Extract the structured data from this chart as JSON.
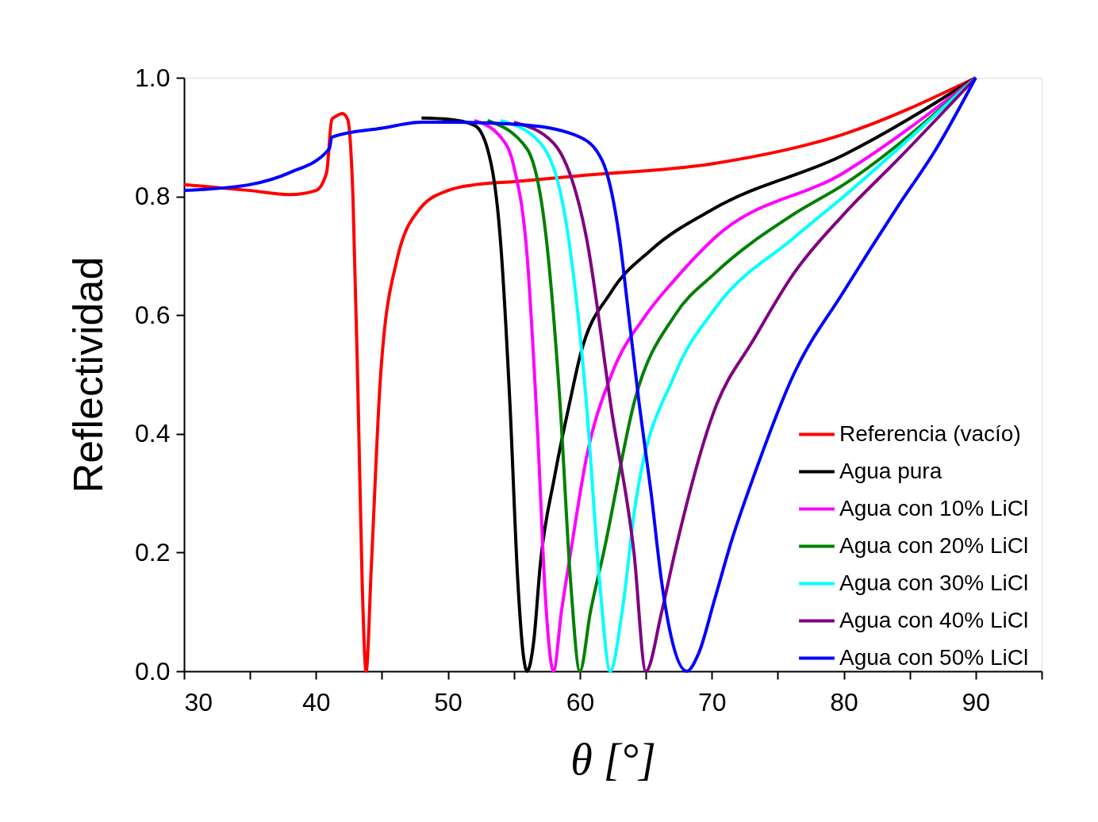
{
  "chart_data": {
    "type": "line",
    "xlabel": "θ [°]",
    "ylabel": "Reflectividad",
    "xlim": [
      30,
      95
    ],
    "ylim": [
      0,
      1
    ],
    "xticks": [
      30,
      {
        "value": 35,
        "label": null
      },
      40,
      {
        "value": 45,
        "label": null
      },
      50,
      {
        "value": 55,
        "label": null
      },
      60,
      {
        "value": 65,
        "label": null
      },
      70,
      {
        "value": 75,
        "label": null
      },
      80,
      {
        "value": 85,
        "label": null
      },
      90,
      {
        "value": 95,
        "label": null
      }
    ],
    "yticks": [
      {
        "value": 0,
        "label": "0.0"
      },
      {
        "value": 0.2,
        "label": "0.2"
      },
      {
        "value": 0.4,
        "label": "0.4"
      },
      {
        "value": 0.6,
        "label": "0.6"
      },
      {
        "value": 0.8,
        "label": "0.8"
      },
      {
        "value": 1,
        "label": "1.0"
      }
    ],
    "grid": false,
    "legend": "bottom right",
    "marker": "none",
    "line_style": "solid",
    "series": [
      {
        "name": "Referencia (vacío)",
        "color": "#ff0000",
        "x": [
          30,
          35,
          38,
          40,
          40.8,
          41.2,
          41.5,
          42,
          42.4,
          42.8,
          43.2,
          43.5,
          43.8,
          44.2,
          44.9,
          46.1,
          47.9,
          50,
          52.1,
          55,
          60,
          70,
          80,
          90
        ],
        "values": [
          0.82,
          0.81,
          0.803,
          0.81,
          0.84,
          0.93,
          0.935,
          0.94,
          0.93,
          0.8,
          0.45,
          0.15,
          0.0,
          0.18,
          0.5,
          0.69,
          0.78,
          0.81,
          0.82,
          0.825,
          0.835,
          0.855,
          0.905,
          1.0
        ]
      },
      {
        "name": "Agua pura",
        "color": "#000000",
        "x": [
          48,
          50,
          52,
          53,
          54,
          54.7,
          55.3,
          55.7,
          56.0,
          56.5,
          57,
          58.1,
          59.3,
          60,
          62.4,
          65.4,
          70.2,
          80,
          90
        ],
        "values": [
          0.932,
          0.93,
          0.92,
          0.88,
          0.72,
          0.45,
          0.15,
          0.03,
          0.0,
          0.05,
          0.18,
          0.33,
          0.46,
          0.53,
          0.64,
          0.71,
          0.78,
          0.87,
          1.0
        ]
      },
      {
        "name": "Agua con 10% LiCl",
        "color": "#ff00ff",
        "x": [
          52,
          54,
          55,
          56,
          56.8,
          57.4,
          58.0,
          58.6,
          59.3,
          60.5,
          62.4,
          65,
          67.2,
          70.2,
          80,
          90
        ],
        "values": [
          0.928,
          0.9,
          0.85,
          0.7,
          0.4,
          0.12,
          0.0,
          0.1,
          0.2,
          0.36,
          0.5,
          0.6,
          0.66,
          0.73,
          0.84,
          1.0
        ]
      },
      {
        "name": "Agua con 20% LiCl",
        "color": "#008000",
        "x": [
          53,
          56,
          57.5,
          58.5,
          59.3,
          60.0,
          60.8,
          61.8,
          64.2,
          67.2,
          70.2,
          76.2,
          80,
          90
        ],
        "values": [
          0.928,
          0.88,
          0.72,
          0.45,
          0.15,
          0.0,
          0.1,
          0.2,
          0.46,
          0.6,
          0.67,
          0.77,
          0.82,
          1.0
        ]
      },
      {
        "name": "Agua con 30% LiCl",
        "color": "#00ffff",
        "x": [
          54,
          57,
          59,
          60.5,
          61.5,
          62.3,
          63.2,
          64.2,
          67.2,
          70.2,
          76.2,
          80,
          90
        ],
        "values": [
          0.928,
          0.89,
          0.75,
          0.45,
          0.15,
          0.0,
          0.1,
          0.28,
          0.5,
          0.61,
          0.73,
          0.8,
          1.0
        ]
      },
      {
        "name": "Agua con 40% LiCl",
        "color": "#800080",
        "x": [
          55,
          58,
          60.5,
          62.4,
          64.1,
          65.0,
          66.2,
          67.2,
          70.2,
          73.2,
          76.2,
          80,
          84,
          90
        ],
        "values": [
          0.925,
          0.89,
          0.73,
          0.44,
          0.2,
          0.0,
          0.1,
          0.2,
          0.44,
          0.56,
          0.67,
          0.77,
          0.86,
          1.0
        ]
      },
      {
        "name": "Agua con 50% LiCl",
        "color": "#0000ff",
        "x": [
          30,
          35,
          38,
          41,
          41.2,
          45,
          48,
          50,
          56,
          60,
          61.7,
          63,
          63.7,
          64.5,
          65.4,
          66.2,
          66.9,
          68.1,
          69,
          70.2,
          71.5,
          73.2,
          76.2,
          80,
          84,
          87,
          90
        ],
        "values": [
          0.81,
          0.82,
          0.84,
          0.88,
          0.9,
          0.915,
          0.925,
          0.925,
          0.92,
          0.9,
          0.86,
          0.73,
          0.6,
          0.45,
          0.3,
          0.15,
          0.06,
          0.0,
          0.03,
          0.12,
          0.22,
          0.33,
          0.5,
          0.64,
          0.78,
          0.88,
          1.0
        ]
      }
    ]
  }
}
